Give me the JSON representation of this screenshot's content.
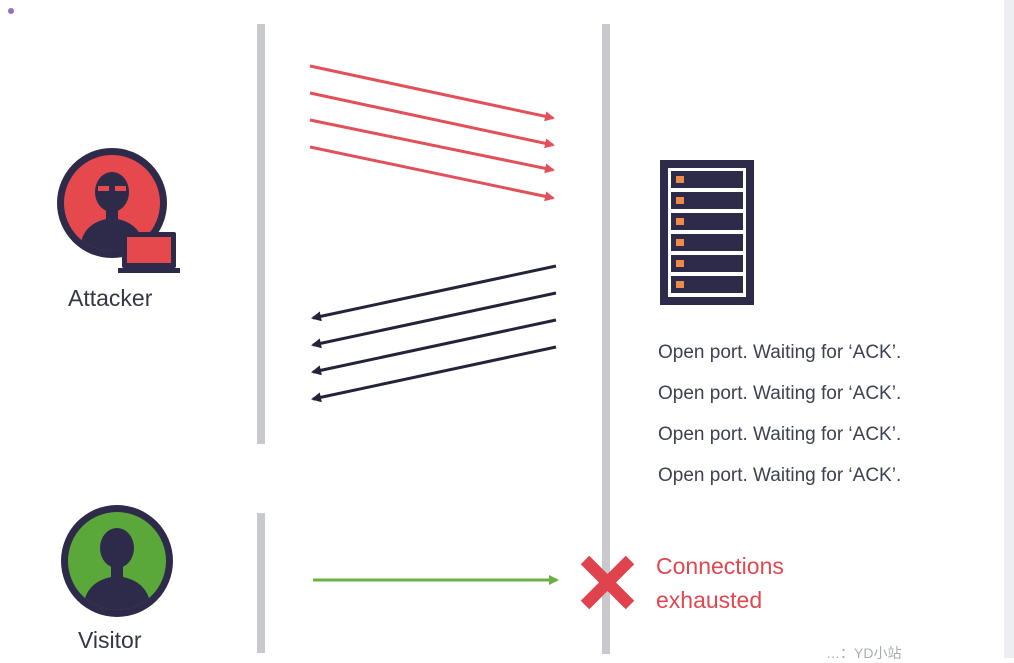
{
  "actors": {
    "attacker": {
      "label": "Attacker",
      "icon": "attacker-avatar-icon",
      "color": "#e5484d"
    },
    "visitor": {
      "label": "Visitor",
      "icon": "visitor-avatar-icon",
      "color": "#5aa83a"
    }
  },
  "server": {
    "icon": "server-rack-icon"
  },
  "status_lines": [
    "Open port. Waiting for ‘ACK’.",
    "Open port. Waiting for ‘ACK’.",
    "Open port. Waiting for ‘ACK’.",
    "Open port. Waiting for ‘ACK’."
  ],
  "result": {
    "icon": "cross-icon",
    "text_line1": "Connections",
    "text_line2": "exhausted"
  },
  "watermark": "…：YD小站",
  "colors": {
    "syn_arrows": "#e2505a",
    "synack_arrows": "#23243a",
    "visitor_arrow": "#6cb043",
    "cross": "#e0434d",
    "timeline": "#c8c9cc"
  }
}
